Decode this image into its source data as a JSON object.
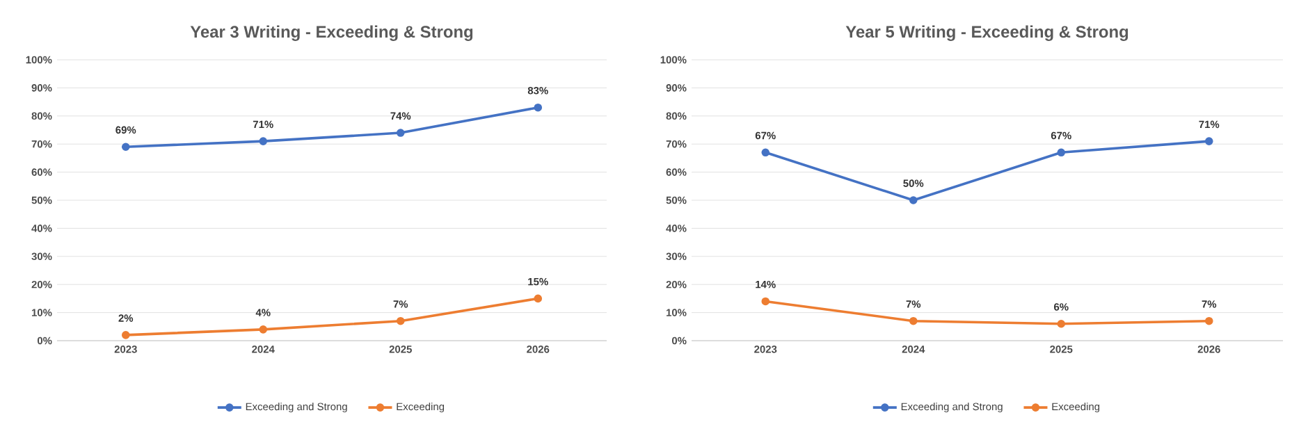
{
  "chart_data": [
    {
      "type": "line",
      "title": "Year 3 Writing - Exceeding & Strong",
      "categories": [
        "2023",
        "2024",
        "2025",
        "2026"
      ],
      "ylim": [
        0,
        100
      ],
      "yticks": [
        {
          "value": 0,
          "label": "0%"
        },
        {
          "value": 10,
          "label": "10%"
        },
        {
          "value": 20,
          "label": "20%"
        },
        {
          "value": 30,
          "label": "30%"
        },
        {
          "value": 40,
          "label": "40%"
        },
        {
          "value": 50,
          "label": "50%"
        },
        {
          "value": 60,
          "label": "60%"
        },
        {
          "value": 70,
          "label": "70%"
        },
        {
          "value": 80,
          "label": "80%"
        },
        {
          "value": 90,
          "label": "90%"
        },
        {
          "value": 100,
          "label": "100%"
        }
      ],
      "grid": "y",
      "legend": "bottom",
      "marker": "circle",
      "series": [
        {
          "name": "Exceeding and Strong",
          "color": "#4472c4",
          "values": [
            69,
            71,
            74,
            83
          ],
          "value_labels": [
            "69%",
            "71%",
            "74%",
            "83%"
          ]
        },
        {
          "name": "Exceeding",
          "color": "#ed7d31",
          "values": [
            2,
            4,
            7,
            15
          ],
          "value_labels": [
            "2%",
            "4%",
            "7%",
            "15%"
          ]
        }
      ]
    },
    {
      "type": "line",
      "title": "Year 5 Writing - Exceeding & Strong",
      "categories": [
        "2023",
        "2024",
        "2025",
        "2026"
      ],
      "ylim": [
        0,
        100
      ],
      "yticks": [
        {
          "value": 0,
          "label": "0%"
        },
        {
          "value": 10,
          "label": "10%"
        },
        {
          "value": 20,
          "label": "20%"
        },
        {
          "value": 30,
          "label": "30%"
        },
        {
          "value": 40,
          "label": "40%"
        },
        {
          "value": 50,
          "label": "50%"
        },
        {
          "value": 60,
          "label": "60%"
        },
        {
          "value": 70,
          "label": "70%"
        },
        {
          "value": 80,
          "label": "80%"
        },
        {
          "value": 90,
          "label": "90%"
        },
        {
          "value": 100,
          "label": "100%"
        }
      ],
      "grid": "y",
      "legend": "bottom",
      "marker": "circle",
      "series": [
        {
          "name": "Exceeding and Strong",
          "color": "#4472c4",
          "values": [
            67,
            50,
            67,
            71
          ],
          "value_labels": [
            "67%",
            "50%",
            "67%",
            "71%"
          ]
        },
        {
          "name": "Exceeding",
          "color": "#ed7d31",
          "values": [
            14,
            7,
            6,
            7
          ],
          "value_labels": [
            "14%",
            "7%",
            "6%",
            "7%"
          ]
        }
      ]
    }
  ]
}
